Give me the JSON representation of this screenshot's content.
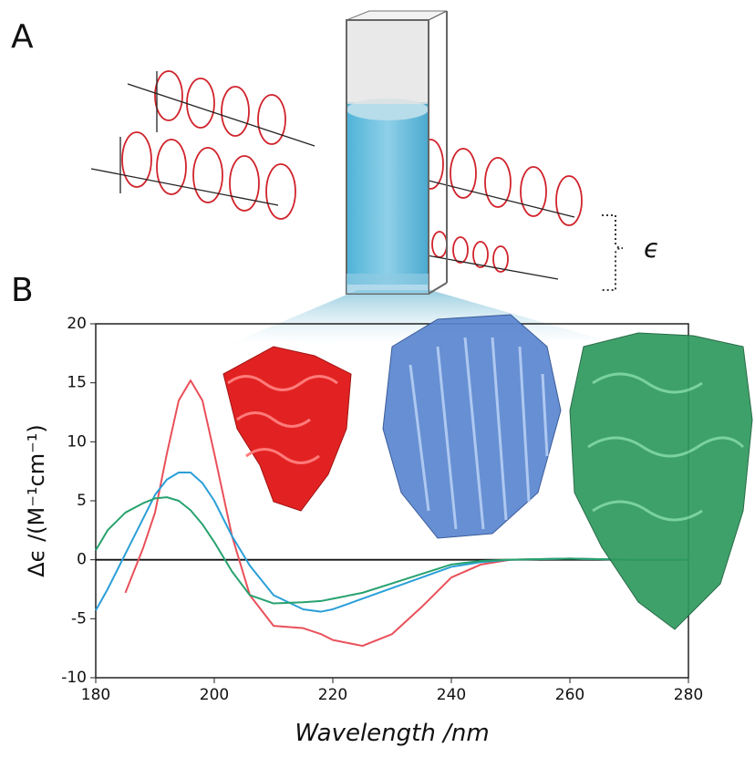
{
  "panel_labels": [
    "A",
    "B"
  ],
  "annotation": "ϵ",
  "chart_data": {
    "type": "line",
    "x_label": "Wavelength /nm",
    "y_label": "Δϵ /(M⁻¹cm⁻¹)",
    "x": [
      180,
      182,
      185,
      188,
      190,
      192,
      194,
      196,
      198,
      200,
      203,
      206,
      210,
      215,
      218,
      220,
      225,
      230,
      235,
      240,
      245,
      250,
      260,
      270,
      280
    ],
    "series": [
      {
        "color": "#e9505a",
        "values": [
          null,
          null,
          -2.8,
          1,
          4,
          9,
          13.5,
          15.2,
          13.5,
          9,
          2,
          -3,
          -5.6,
          -5.8,
          -6.3,
          -6.8,
          -7.3,
          -6.3,
          -4,
          -1.5,
          -0.4,
          0,
          0.1,
          0,
          0
        ]
      },
      {
        "color": "#2a9fd8",
        "values": [
          -4.3,
          -2.5,
          0.5,
          3.5,
          5.5,
          6.8,
          7.4,
          7.4,
          6.5,
          5,
          2,
          -0.5,
          -3,
          -4.2,
          -4.4,
          -4.2,
          -3.3,
          -2.4,
          -1.5,
          -0.6,
          -0.2,
          0,
          0.1,
          0,
          0
        ]
      },
      {
        "color": "#27a26e",
        "values": [
          0.8,
          2.5,
          4,
          4.8,
          5.2,
          5.3,
          5,
          4.2,
          3,
          1.5,
          -1,
          -3,
          -3.7,
          -3.6,
          -3.5,
          -3.3,
          -2.8,
          -2,
          -1.2,
          -0.4,
          -0.1,
          0,
          0.1,
          0,
          0
        ]
      }
    ],
    "xlim": [
      180,
      280
    ],
    "xticks": [
      180,
      200,
      220,
      240,
      260,
      280
    ],
    "ylim": [
      -10,
      20
    ],
    "yticks": [
      -10,
      -5,
      0,
      5,
      10,
      15,
      20
    ],
    "hline": 0
  }
}
